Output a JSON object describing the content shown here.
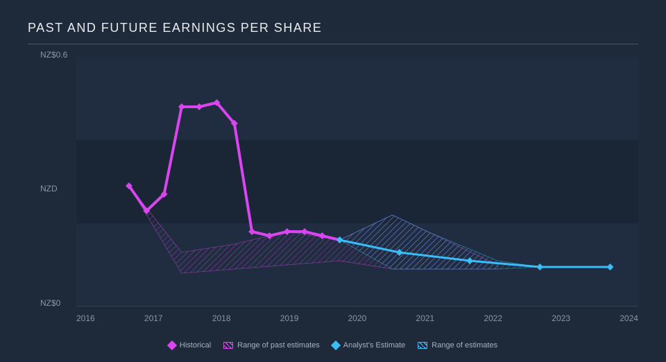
{
  "chart": {
    "title": "PAST AND FUTURE EARNINGS PER SHARE",
    "type": "line",
    "background_color": "#1e2a3a",
    "title_color": "#e8eaed",
    "title_fontsize": 18,
    "title_letter_spacing": 1.5,
    "divider_color": "#4a5568",
    "axis_label_color": "#8a95a5",
    "axis_label_fontsize": 12,
    "legend_fontsize": 11,
    "legend_color": "#a8b0bc",
    "xlim": [
      2016,
      2024
    ],
    "ylim": [
      0,
      0.6
    ],
    "y_ticks": [
      {
        "value": 0.6,
        "label": "NZ$0.6"
      },
      {
        "value": 0.3,
        "label": "NZD"
      },
      {
        "value": 0.0,
        "label": "NZ$0"
      }
    ],
    "x_ticks": [
      "2016",
      "2017",
      "2018",
      "2019",
      "2020",
      "2021",
      "2022",
      "2023",
      "2024"
    ],
    "grid_band_color_dark": "#1a2535",
    "grid_band_color_light": "#202d40",
    "baseline_color": "#4a5568",
    "series": {
      "historical": {
        "label": "Historical",
        "color": "#d946ef",
        "line_width": 4,
        "marker": "diamond",
        "marker_size": 7,
        "points": [
          {
            "x": 2016.75,
            "y": 0.29
          },
          {
            "x": 2017.0,
            "y": 0.23
          },
          {
            "x": 2017.25,
            "y": 0.27
          },
          {
            "x": 2017.5,
            "y": 0.48
          },
          {
            "x": 2017.75,
            "y": 0.48
          },
          {
            "x": 2018.0,
            "y": 0.49
          },
          {
            "x": 2018.25,
            "y": 0.44
          },
          {
            "x": 2018.5,
            "y": 0.18
          },
          {
            "x": 2018.75,
            "y": 0.17
          },
          {
            "x": 2019.0,
            "y": 0.18
          },
          {
            "x": 2019.25,
            "y": 0.18
          },
          {
            "x": 2019.5,
            "y": 0.17
          },
          {
            "x": 2019.75,
            "y": 0.16
          }
        ]
      },
      "past_estimate_range": {
        "label": "Range of past estimates",
        "fill_color": "#d946ef",
        "fill_opacity": 0.18,
        "hatch_color": "#d946ef",
        "upper": [
          {
            "x": 2016.75,
            "y": 0.29
          },
          {
            "x": 2017.5,
            "y": 0.13
          },
          {
            "x": 2018.25,
            "y": 0.15
          },
          {
            "x": 2019.0,
            "y": 0.18
          },
          {
            "x": 2019.75,
            "y": 0.16
          },
          {
            "x": 2020.5,
            "y": 0.22
          },
          {
            "x": 2021.0,
            "y": 0.18
          },
          {
            "x": 2022.0,
            "y": 0.1
          }
        ],
        "lower": [
          {
            "x": 2016.75,
            "y": 0.29
          },
          {
            "x": 2017.5,
            "y": 0.08
          },
          {
            "x": 2018.25,
            "y": 0.09
          },
          {
            "x": 2019.0,
            "y": 0.1
          },
          {
            "x": 2019.75,
            "y": 0.11
          },
          {
            "x": 2020.5,
            "y": 0.09
          },
          {
            "x": 2021.0,
            "y": 0.09
          },
          {
            "x": 2022.0,
            "y": 0.09
          }
        ]
      },
      "analyst_estimate": {
        "label": "Analyst's Estimate",
        "color": "#38bdf8",
        "line_width": 3,
        "marker": "diamond",
        "marker_size": 7,
        "points": [
          {
            "x": 2019.75,
            "y": 0.16
          },
          {
            "x": 2020.6,
            "y": 0.13
          },
          {
            "x": 2021.6,
            "y": 0.11
          },
          {
            "x": 2022.6,
            "y": 0.095
          },
          {
            "x": 2023.6,
            "y": 0.095
          }
        ]
      },
      "future_estimate_range": {
        "label": "Range of estimates",
        "fill_color": "#38bdf8",
        "fill_opacity": 0.18,
        "hatch_color": "#38bdf8",
        "upper": [
          {
            "x": 2019.75,
            "y": 0.16
          },
          {
            "x": 2020.5,
            "y": 0.22
          },
          {
            "x": 2021.0,
            "y": 0.18
          },
          {
            "x": 2022.0,
            "y": 0.11
          },
          {
            "x": 2022.6,
            "y": 0.095
          }
        ],
        "lower": [
          {
            "x": 2019.75,
            "y": 0.16
          },
          {
            "x": 2020.5,
            "y": 0.09
          },
          {
            "x": 2021.0,
            "y": 0.09
          },
          {
            "x": 2022.0,
            "y": 0.09
          },
          {
            "x": 2022.6,
            "y": 0.095
          }
        ]
      }
    },
    "legend_items": [
      {
        "kind": "diamond",
        "color": "#d946ef",
        "label_path": "chart.series.historical.label"
      },
      {
        "kind": "hatch",
        "color": "#d946ef",
        "label_path": "chart.series.past_estimate_range.label"
      },
      {
        "kind": "diamond",
        "color": "#38bdf8",
        "label_path": "chart.series.analyst_estimate.label"
      },
      {
        "kind": "hatch",
        "color": "#38bdf8",
        "label_path": "chart.series.future_estimate_range.label"
      }
    ]
  }
}
